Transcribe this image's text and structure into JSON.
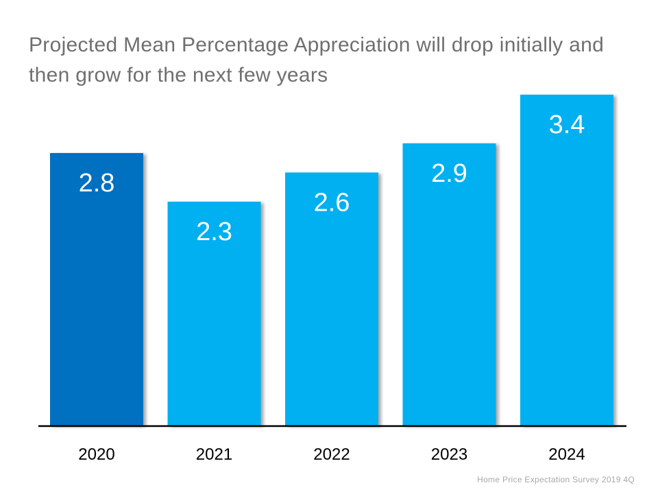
{
  "title": "Projected Mean Percentage Appreciation will drop initially and then grow for the next few years",
  "source": "Home Price Expectation Survey 2019 4Q",
  "chart_data": {
    "type": "bar",
    "categories": [
      "2020",
      "2021",
      "2022",
      "2023",
      "2024"
    ],
    "values": [
      2.8,
      2.3,
      2.6,
      2.9,
      3.4
    ],
    "data_labels": [
      "2.8",
      "2.3",
      "2.6",
      "2.9",
      "3.4"
    ],
    "title": "Projected Mean Percentage Appreciation will drop initially and then grow for the next few years",
    "xlabel": "",
    "ylabel": "",
    "ylim": [
      0,
      3.4
    ],
    "grid": false,
    "legend": "none",
    "bar_colors": [
      "#0070c0",
      "#00b0f0",
      "#00b0f0",
      "#00b0f0",
      "#00b0f0"
    ],
    "label_color": "#ffffff",
    "axis_color": "#000000"
  }
}
